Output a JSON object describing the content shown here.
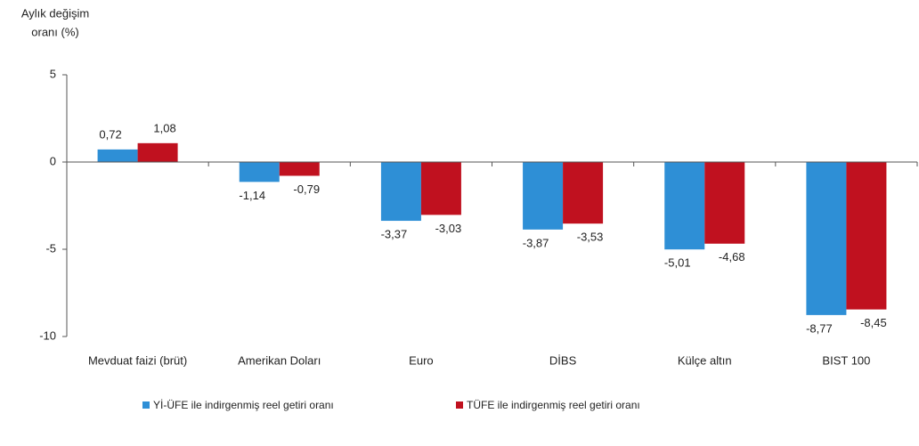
{
  "chart_data": {
    "type": "bar",
    "y_label": [
      "Aylık değişim",
      "oranı (%)"
    ],
    "categories": [
      "Mevduat faizi (brüt)",
      "Amerikan Doları",
      "Euro",
      "DİBS",
      "Külçe altın",
      "BIST 100"
    ],
    "series": [
      {
        "name": "Yİ-ÜFE ile indirgenmiş reel getiri oranı",
        "color": "#2e8fd6",
        "values": [
          0.72,
          -1.14,
          -3.37,
          -3.87,
          -5.01,
          -8.77
        ],
        "value_labels": [
          "0,72",
          "-1,14",
          "-3,37",
          "-3,87",
          "-5,01",
          "-8,77"
        ]
      },
      {
        "name": "TÜFE ile indirgenmiş reel getiri oranı",
        "color": "#c0111f",
        "values": [
          1.08,
          -0.79,
          -3.03,
          -3.53,
          -4.68,
          -8.45
        ],
        "value_labels": [
          "1,08",
          "-0,79",
          "-3,03",
          "-3,53",
          "-4,68",
          "-8,45"
        ]
      }
    ],
    "ylim": [
      -10,
      5
    ],
    "yticks": [
      5,
      0,
      -5,
      -10
    ],
    "legend": "bottom"
  }
}
